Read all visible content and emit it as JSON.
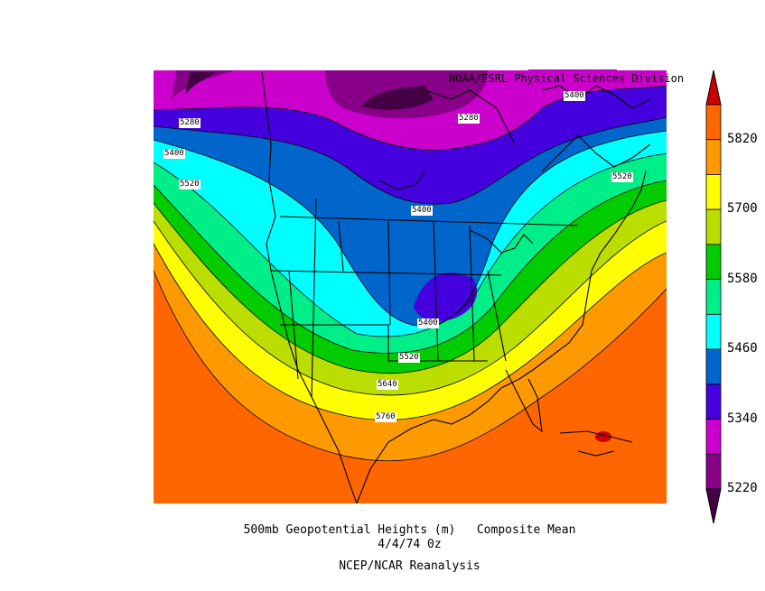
{
  "header": {
    "credit": "NOAA/ESRL Physical Sciences Division"
  },
  "caption": {
    "line1": "500mb Geopotential Heights (m)   Composite Mean",
    "line2": "4/4/74 0z",
    "line3": "NCEP/NCAR Reanalysis"
  },
  "contour_labels": [
    "5280",
    "5400",
    "5520",
    "5280",
    "5400",
    "5400",
    "5520",
    "5400",
    "5520",
    "5640",
    "5760"
  ],
  "colorbar": {
    "labels": [
      "5820",
      "5700",
      "5580",
      "5460",
      "5340",
      "5220"
    ],
    "colors": [
      "#cc0000",
      "#ff6600",
      "#ff9900",
      "#ffff00",
      "#bbdd00",
      "#00cc00",
      "#00ee88",
      "#00ffff",
      "#0066cc",
      "#4400dd",
      "#cc00cc",
      "#880088",
      "#440044"
    ]
  }
}
